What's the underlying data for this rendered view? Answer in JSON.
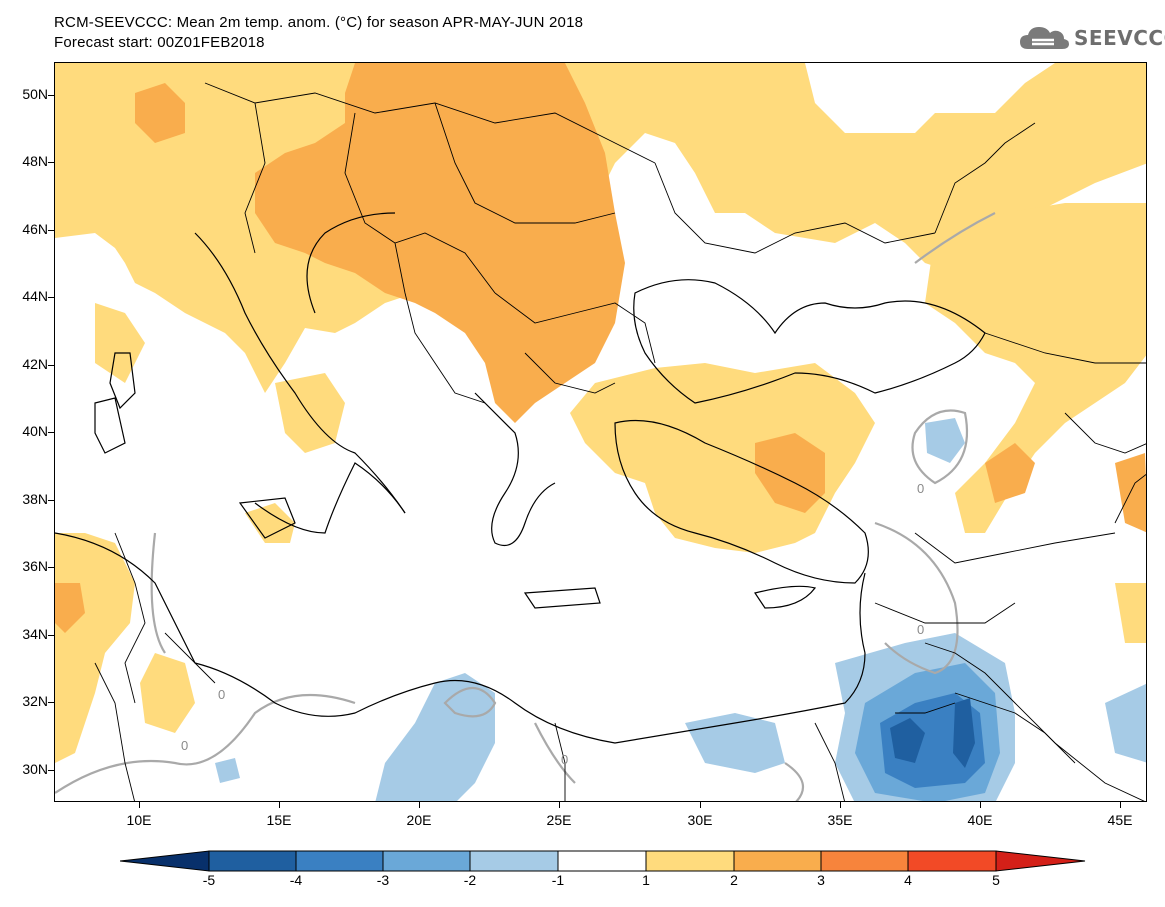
{
  "title_line1": "RCM-SEEVCCC: Mean 2m temp. anom. (°C) for season APR-MAY-JUN 2018",
  "title_line2": "Forecast start: 00Z01FEB2018",
  "logo_text": "SEEVCCC",
  "lat_labels": [
    "50N",
    "48N",
    "46N",
    "44N",
    "42N",
    "40N",
    "38N",
    "36N",
    "34N",
    "32N",
    "30N"
  ],
  "lon_labels": [
    "10E",
    "15E",
    "20E",
    "25E",
    "30E",
    "35E",
    "40E",
    "45E"
  ],
  "contour_label": "0",
  "colorbar": {
    "labels": [
      "-5",
      "-4",
      "-3",
      "-2",
      "-1",
      "1",
      "2",
      "3",
      "4",
      "5"
    ],
    "colors": [
      "#08306b",
      "#1f5fa0",
      "#3a80c2",
      "#6aa8d8",
      "#a6cbe6",
      "#ffffff",
      "#ffdb7d",
      "#f9ad4d",
      "#f7843c",
      "#f24a26",
      "#d42018"
    ]
  },
  "colors": {
    "anom_1_2": "#ffdb7d",
    "anom_2_3": "#f9ad4d",
    "anom_m1_m2": "#a6cbe6",
    "anom_m2_m3": "#6aa8d8",
    "anom_m3_m4": "#3a80c2",
    "anom_m4_m5": "#1f5fa0",
    "zero_contour": "#a9a9a9"
  }
}
